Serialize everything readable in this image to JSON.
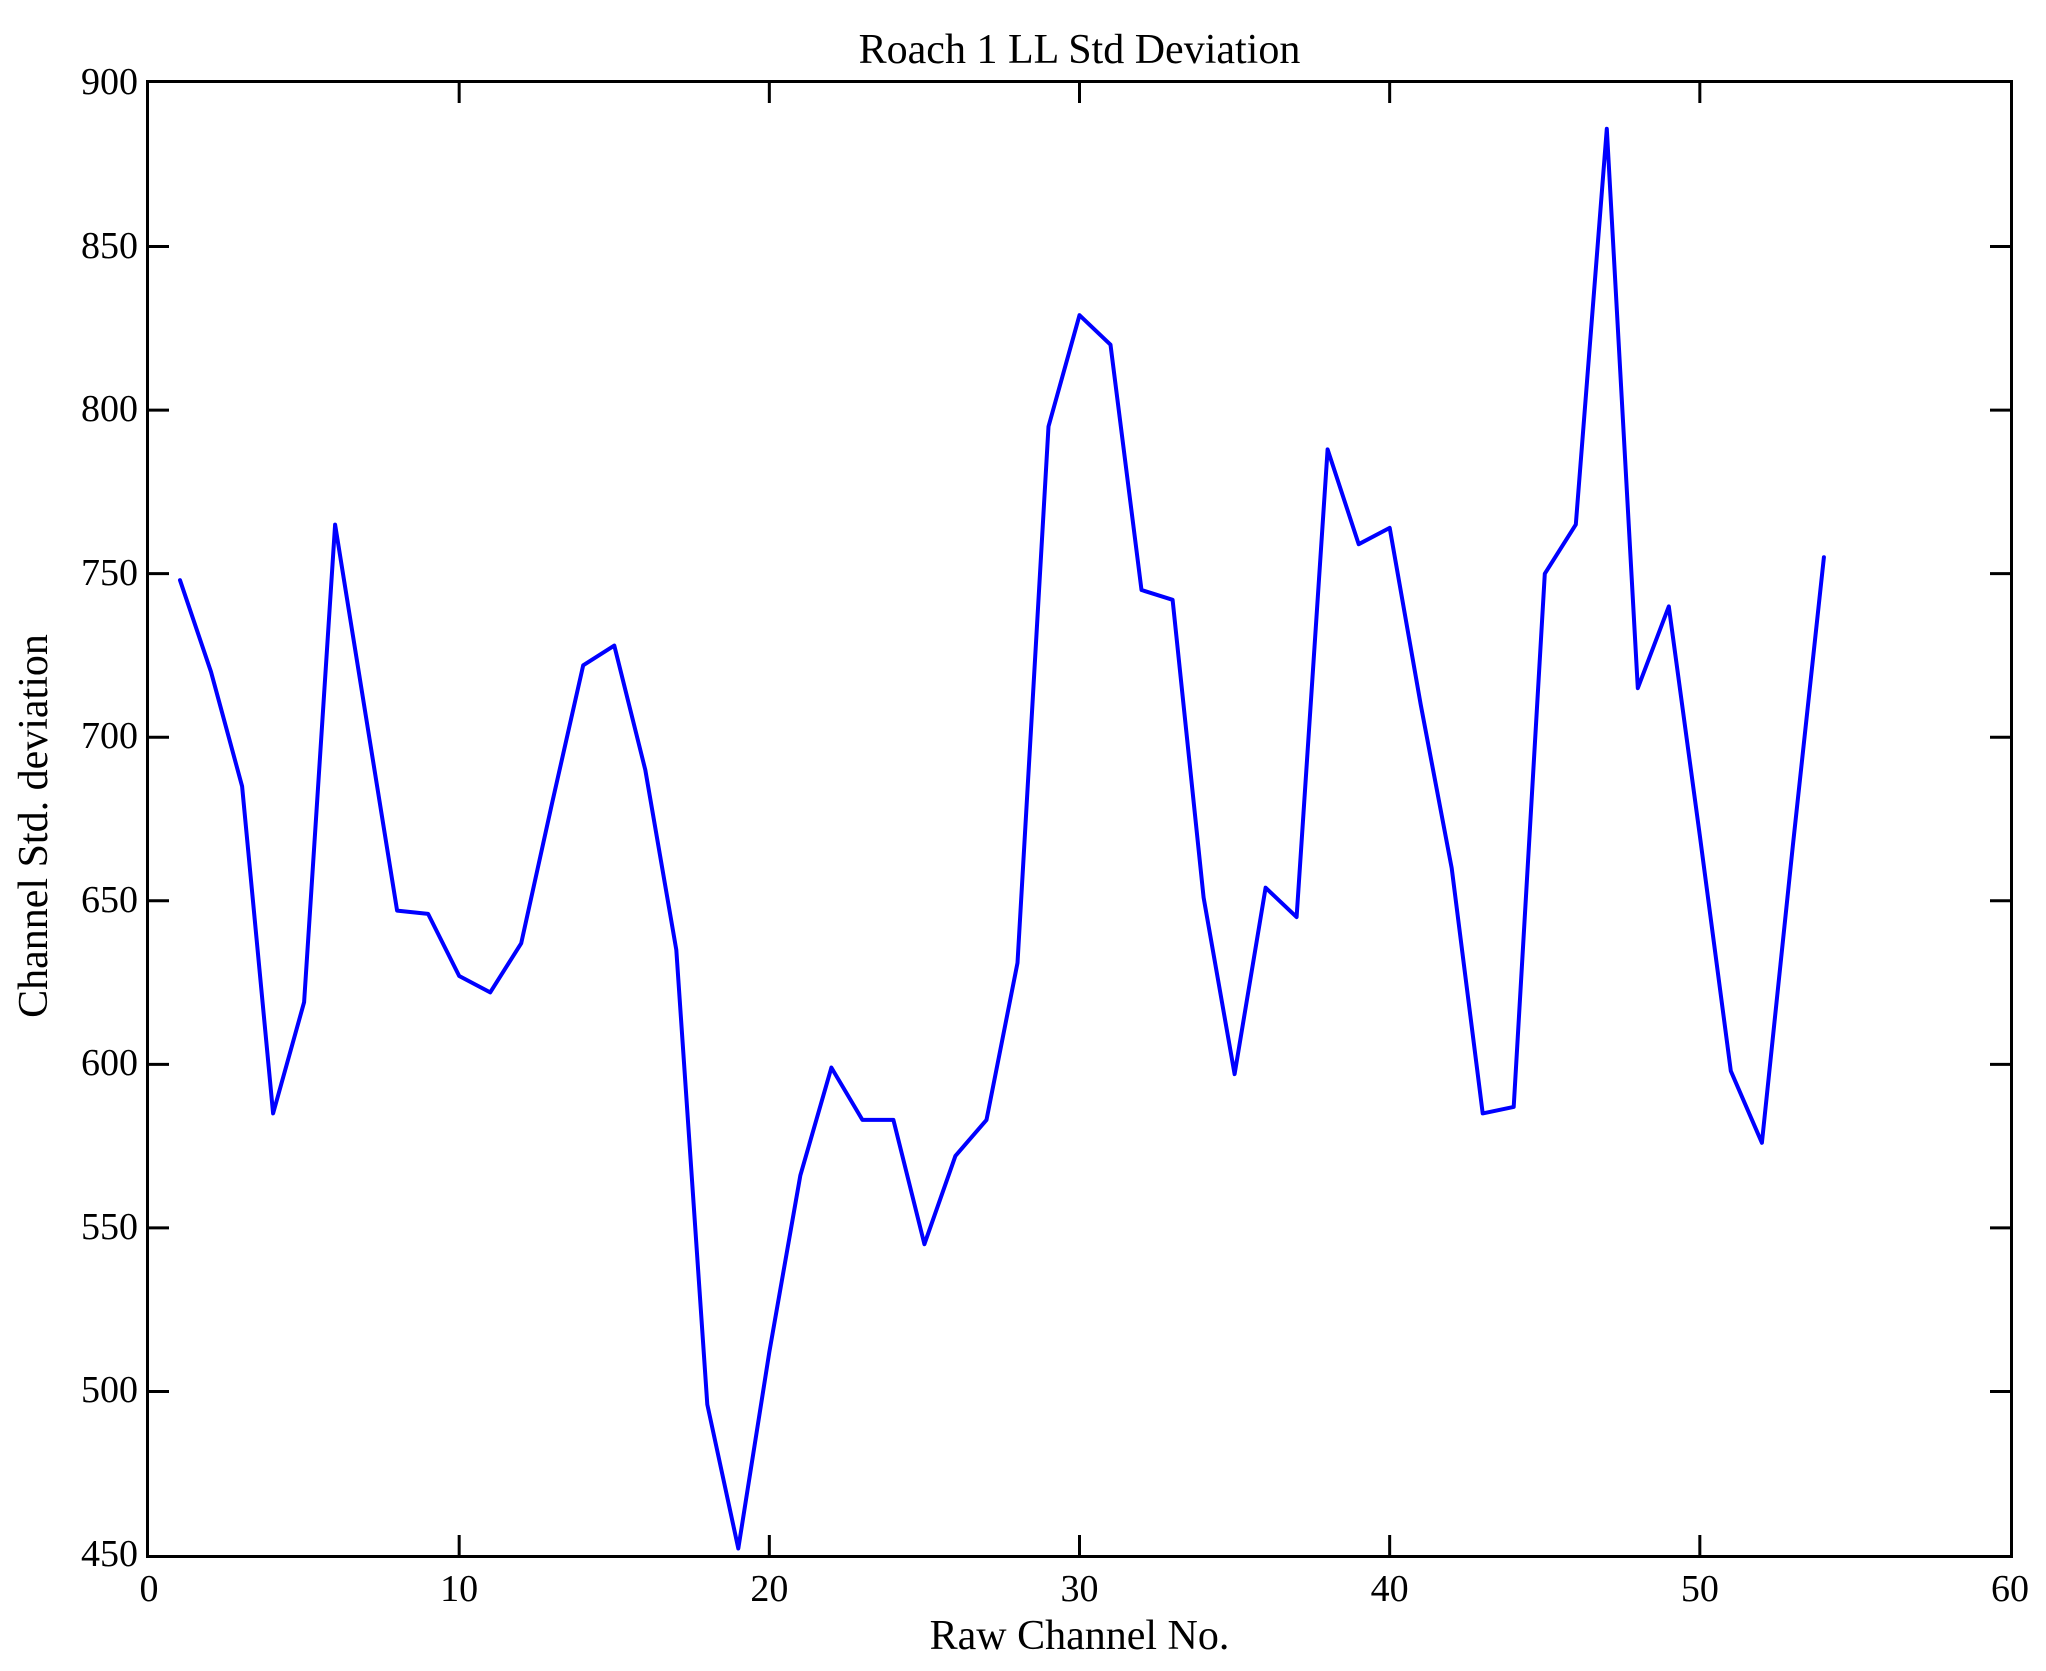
{
  "title": "Roach 1 LL Std Deviation",
  "chart_data": {
    "type": "line",
    "title": "Roach 1 LL Std Deviation",
    "xlabel": "Raw Channel No.",
    "ylabel": "Channel Std. deviation",
    "xlim": [
      0,
      60
    ],
    "ylim": [
      450,
      900
    ],
    "x_ticks": [
      0,
      10,
      20,
      30,
      40,
      50,
      60
    ],
    "y_ticks": [
      450,
      500,
      550,
      600,
      650,
      700,
      750,
      800,
      850,
      900
    ],
    "grid": false,
    "legend": "none",
    "line_color": "#0000ff",
    "axis_color": "#000000",
    "background_color": "#ffffff",
    "x": [
      1,
      2,
      3,
      4,
      5,
      6,
      7,
      8,
      9,
      10,
      11,
      12,
      13,
      14,
      15,
      16,
      17,
      18,
      19,
      20,
      21,
      22,
      23,
      24,
      25,
      26,
      27,
      28,
      29,
      30,
      31,
      32,
      33,
      34,
      35,
      36,
      37,
      38,
      39,
      40,
      41,
      42,
      43,
      44,
      45,
      46,
      47,
      48,
      49,
      50,
      51,
      52,
      53,
      54
    ],
    "values": [
      748,
      720,
      685,
      585,
      619,
      765,
      706,
      647,
      646,
      627,
      622,
      637,
      680,
      722,
      728,
      690,
      635,
      496,
      452,
      512,
      566,
      599,
      583,
      583,
      545,
      572,
      583,
      631,
      795,
      829,
      820,
      745,
      742,
      651,
      597,
      654,
      645,
      788,
      759,
      764,
      710,
      660,
      585,
      587,
      750,
      765,
      886,
      715,
      740,
      670,
      598,
      576,
      667,
      755
    ]
  }
}
